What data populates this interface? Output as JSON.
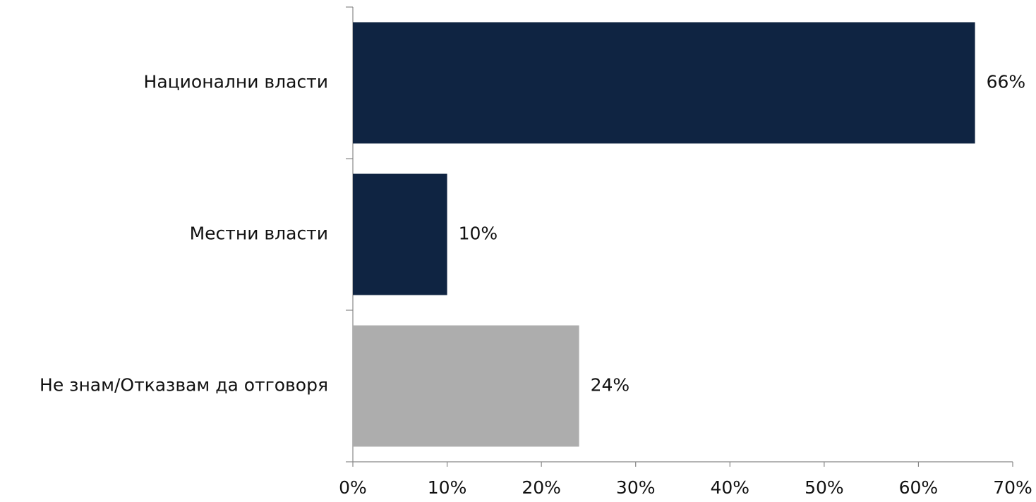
{
  "chart_data": {
    "type": "barh",
    "categories": [
      "Национални власти",
      "Местни власти",
      "Не знам/Отказвам да отговоря"
    ],
    "values": [
      66,
      10,
      24
    ],
    "value_labels": [
      "66%",
      "10%",
      "24%"
    ],
    "colors": [
      "#0f2442",
      "#0f2442",
      "#adadad"
    ],
    "xlim": [
      0,
      70
    ],
    "xticks": [
      {
        "value": 0,
        "label": "0%"
      },
      {
        "value": 10,
        "label": "10%"
      },
      {
        "value": 20,
        "label": "20%"
      },
      {
        "value": 30,
        "label": "30%"
      },
      {
        "value": 40,
        "label": "40%"
      },
      {
        "value": 50,
        "label": "50%"
      },
      {
        "value": 60,
        "label": "60%"
      },
      {
        "value": 70,
        "label": "70%"
      }
    ],
    "grid": false
  }
}
